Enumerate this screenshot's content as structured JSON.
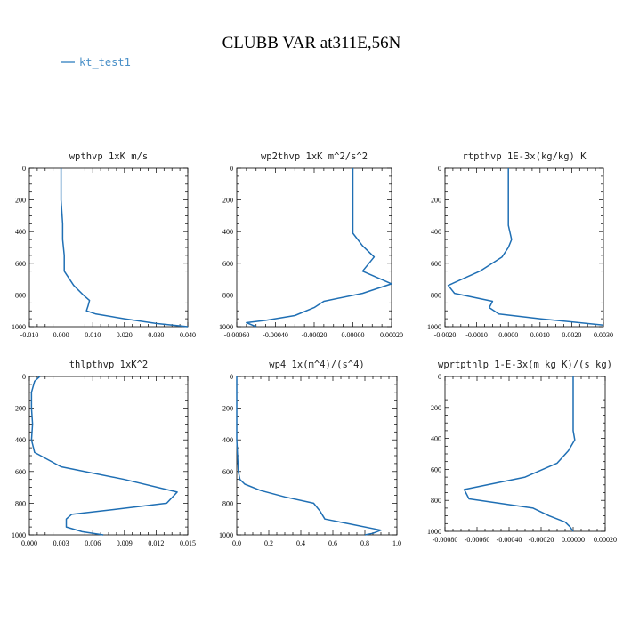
{
  "figure": {
    "title": "CLUBB VAR at311E,56N",
    "legend": {
      "label": "kt_test1",
      "color": "#4a90c8"
    },
    "line_color": "#1f6fb4"
  },
  "chart_data": [
    {
      "type": "line",
      "title": "wpthvp  1xK m/s",
      "xlim": [
        -0.01,
        0.04
      ],
      "ylim": [
        0,
        1000
      ],
      "y_inverted": true,
      "xticks": [
        "-0.010",
        "0.000",
        "0.010",
        "0.020",
        "0.030",
        "0.040"
      ],
      "xtick_values": [
        -0.01,
        0.0,
        0.01,
        0.02,
        0.03,
        0.04
      ],
      "yticks": [
        "0",
        "200",
        "400",
        "600",
        "800",
        "1000"
      ],
      "ytick_values": [
        0,
        200,
        400,
        600,
        800,
        1000
      ],
      "series": [
        {
          "x": [
            0.0,
            0.0,
            0.0005,
            0.0005,
            0.001,
            0.001,
            0.004,
            0.007,
            0.009,
            0.0085,
            0.008,
            0.011,
            0.02,
            0.03,
            0.04
          ],
          "y": [
            0,
            200,
            350,
            450,
            550,
            650,
            740,
            800,
            835,
            870,
            900,
            920,
            950,
            980,
            1000
          ]
        }
      ]
    },
    {
      "type": "line",
      "title": "wp2thvp  1xK m^2/s^2",
      "xlim": [
        -0.0006,
        0.0002
      ],
      "ylim": [
        0,
        1000
      ],
      "y_inverted": true,
      "xticks": [
        "-0.00060",
        "-0.00040",
        "-0.00020",
        "0.00000",
        "0.00020"
      ],
      "xtick_values": [
        -0.0006,
        -0.0004,
        -0.0002,
        0.0,
        0.0002
      ],
      "yticks": [
        "0",
        "200",
        "400",
        "600",
        "800",
        "1000"
      ],
      "ytick_values": [
        0,
        200,
        400,
        600,
        800,
        1000
      ],
      "series": [
        {
          "x": [
            0.0,
            0.0,
            0.0,
            5e-05,
            0.00011,
            5e-05,
            0.0002,
            5e-05,
            -0.00015,
            -0.0002,
            -0.0003,
            -0.00045,
            -0.00055,
            -0.00052,
            -0.0005
          ],
          "y": [
            0,
            200,
            410,
            490,
            560,
            650,
            730,
            790,
            840,
            880,
            930,
            960,
            975,
            990,
            1000
          ]
        }
      ]
    },
    {
      "type": "line",
      "title": "rtpthvp  1E-3x(kg/kg) K",
      "xlim": [
        -0.002,
        0.003
      ],
      "ylim": [
        0,
        1000
      ],
      "y_inverted": true,
      "xticks": [
        "-0.0020",
        "-0.0010",
        "0.0000",
        "0.0010",
        "0.0020",
        "0.0030"
      ],
      "xtick_values": [
        -0.002,
        -0.001,
        0.0,
        0.001,
        0.002,
        0.003
      ],
      "yticks": [
        "0",
        "200",
        "400",
        "600",
        "800",
        "1000"
      ],
      "ytick_values": [
        0,
        200,
        400,
        600,
        800,
        1000
      ],
      "series": [
        {
          "x": [
            0.0,
            0.0,
            0.0,
            0.0001,
            0.0,
            -0.0002,
            -0.0009,
            -0.0019,
            -0.0017,
            -0.0005,
            -0.0006,
            -0.0003,
            0.001,
            0.003
          ],
          "y": [
            0,
            200,
            360,
            450,
            500,
            560,
            650,
            740,
            790,
            840,
            880,
            920,
            950,
            990
          ]
        }
      ]
    },
    {
      "type": "line",
      "title": "thlpthvp  1xK^2",
      "xlim": [
        0.0,
        0.015
      ],
      "ylim": [
        0,
        1000
      ],
      "y_inverted": true,
      "xticks": [
        "0.000",
        "0.003",
        "0.006",
        "0.009",
        "0.012",
        "0.015"
      ],
      "xtick_values": [
        0.0,
        0.003,
        0.006,
        0.009,
        0.012,
        0.015
      ],
      "yticks": [
        "0",
        "200",
        "400",
        "600",
        "800",
        "1000"
      ],
      "ytick_values": [
        0,
        200,
        400,
        600,
        800,
        1000
      ],
      "series": [
        {
          "x": [
            0.001,
            0.0005,
            0.0002,
            0.0002,
            0.0003,
            0.0002,
            0.0005,
            0.003,
            0.009,
            0.014,
            0.013,
            0.008,
            0.004,
            0.0035,
            0.0035,
            0.005,
            0.007
          ],
          "y": [
            0,
            30,
            100,
            200,
            300,
            400,
            480,
            570,
            650,
            730,
            800,
            840,
            870,
            900,
            950,
            980,
            1000
          ]
        }
      ]
    },
    {
      "type": "line",
      "title": "wp4  1x(m^4)/(s^4)",
      "xlim": [
        0.0,
        1.0
      ],
      "ylim": [
        0,
        1000
      ],
      "y_inverted": true,
      "xticks": [
        "0.0",
        "0.2",
        "0.4",
        "0.6",
        "0.8",
        "1.0"
      ],
      "xtick_values": [
        0.0,
        0.2,
        0.4,
        0.6,
        0.8,
        1.0
      ],
      "yticks": [
        "0",
        "200",
        "400",
        "600",
        "800",
        "1000"
      ],
      "ytick_values": [
        0,
        200,
        400,
        600,
        800,
        1000
      ],
      "series": [
        {
          "x": [
            0.0,
            0.0,
            0.01,
            0.02,
            0.05,
            0.15,
            0.3,
            0.48,
            0.52,
            0.55,
            0.7,
            0.9,
            0.85,
            0.8
          ],
          "y": [
            0,
            400,
            600,
            650,
            680,
            720,
            760,
            800,
            850,
            900,
            930,
            970,
            990,
            1000
          ]
        }
      ]
    },
    {
      "type": "line",
      "title": "wprtpthlp  1-E-3x(m kg K)/(s kg)",
      "xlim": [
        -0.0008,
        0.0002
      ],
      "ylim": [
        0,
        1000
      ],
      "y_inverted": true,
      "xticks": [
        "-0.00080",
        "-0.00060",
        "-0.00040",
        "-0.00020",
        "0.00000",
        "0.00020"
      ],
      "xtick_values": [
        -0.0008,
        -0.0006,
        -0.0004,
        -0.0002,
        0.0,
        0.0002
      ],
      "yticks": [
        "0",
        "200",
        "400",
        "600",
        "800",
        "1000"
      ],
      "ytick_values": [
        0,
        200,
        400,
        600,
        800,
        1000
      ],
      "series": [
        {
          "x": [
            0.0,
            0.0,
            0.0,
            1e-05,
            -3e-05,
            -0.0001,
            -0.0003,
            -0.00068,
            -0.00065,
            -0.00025,
            -0.00015,
            -5e-05,
            -2e-05,
            0.0
          ],
          "y": [
            0,
            200,
            350,
            410,
            480,
            560,
            650,
            730,
            790,
            850,
            900,
            940,
            970,
            1000
          ]
        }
      ]
    }
  ]
}
